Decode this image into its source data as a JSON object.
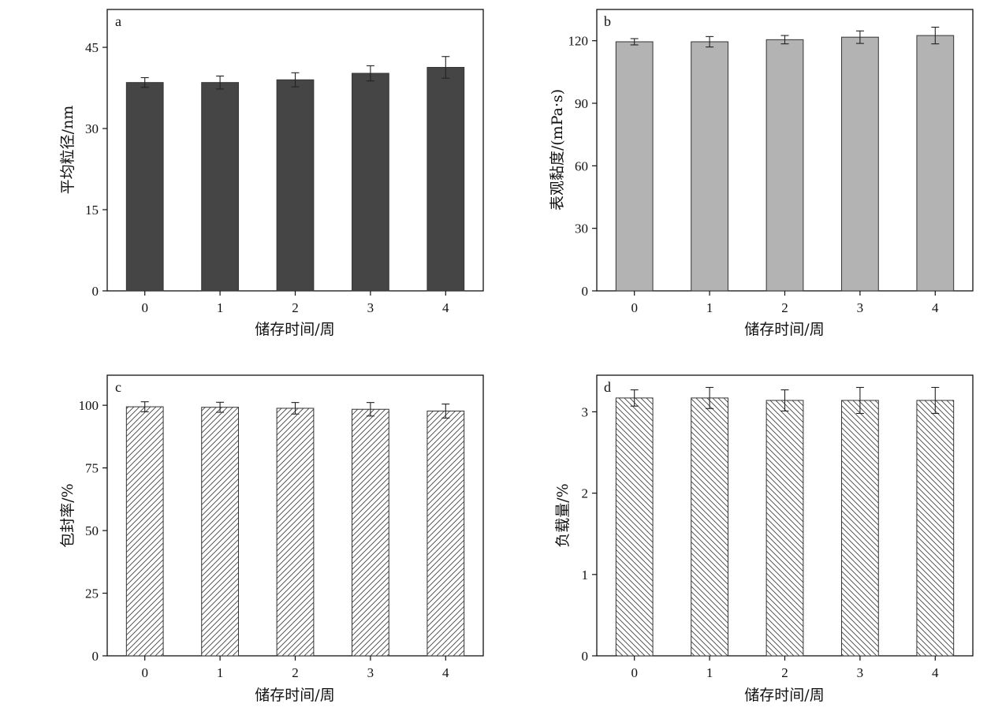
{
  "chart_data": [
    {
      "type": "bar",
      "panel_label": "a",
      "categories": [
        "0",
        "1",
        "2",
        "3",
        "4"
      ],
      "values": [
        38.5,
        38.5,
        39.0,
        40.2,
        41.3
      ],
      "errors": [
        0.9,
        1.2,
        1.3,
        1.4,
        2.0
      ],
      "ylabel": "平均粒径/nm",
      "xlabel": "储存时间/周",
      "ylim": [
        0,
        52
      ],
      "yticks": [
        0,
        15,
        30,
        45
      ],
      "fill": "#454545",
      "pattern": "solid"
    },
    {
      "type": "bar",
      "panel_label": "b",
      "categories": [
        "0",
        "1",
        "2",
        "3",
        "4"
      ],
      "values": [
        119.5,
        119.5,
        120.5,
        121.7,
        122.5
      ],
      "errors": [
        1.5,
        2.5,
        2.0,
        3.0,
        4.0
      ],
      "ylabel": "表观黏度/(mPa·s)",
      "xlabel": "储存时间/周",
      "ylim": [
        0,
        135
      ],
      "yticks": [
        0,
        30,
        60,
        90,
        120
      ],
      "fill": "#b3b3b3",
      "pattern": "solid"
    },
    {
      "type": "bar",
      "panel_label": "c",
      "categories": [
        "0",
        "1",
        "2",
        "3",
        "4"
      ],
      "values": [
        99.4,
        99.2,
        98.8,
        98.4,
        97.7
      ],
      "errors": [
        2.0,
        2.0,
        2.3,
        2.7,
        2.8
      ],
      "ylabel": "包封率/%",
      "xlabel": "储存时间/周",
      "ylim": [
        0,
        112
      ],
      "yticks": [
        0,
        25,
        50,
        75,
        100
      ],
      "fill": "#ffffff",
      "pattern": "hatch-forward"
    },
    {
      "type": "bar",
      "panel_label": "d",
      "categories": [
        "0",
        "1",
        "2",
        "3",
        "4"
      ],
      "values": [
        3.17,
        3.17,
        3.14,
        3.14,
        3.14
      ],
      "errors": [
        0.1,
        0.13,
        0.13,
        0.16,
        0.16
      ],
      "ylabel": "负载量/%",
      "xlabel": "储存时间/周",
      "ylim": [
        0,
        3.45
      ],
      "yticks": [
        0,
        1,
        2,
        3
      ],
      "fill": "#ffffff",
      "pattern": "hatch-back"
    }
  ],
  "colors": {
    "axis": "#111111",
    "bar_stroke": "#333333",
    "hatch": "#444444",
    "error_bar": "#222222"
  }
}
